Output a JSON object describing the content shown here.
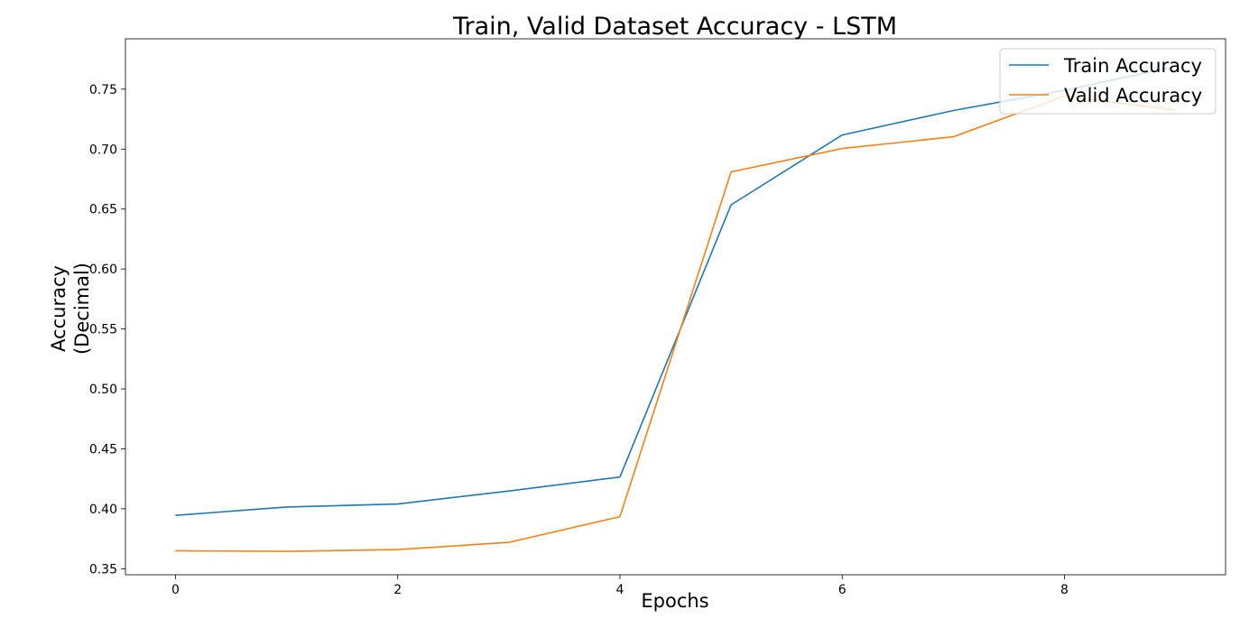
{
  "chart_data": {
    "type": "line",
    "title": "Train, Valid Dataset Accuracy - LSTM",
    "xlabel": "Epochs",
    "ylabel": [
      "Accuracy",
      "(Decimal)"
    ],
    "x": [
      0,
      1,
      2,
      3,
      4,
      5,
      6,
      7,
      8,
      9
    ],
    "xlim": [
      -0.45,
      9.45
    ],
    "ylim": [
      0.345,
      0.792
    ],
    "xticks": [
      0,
      2,
      4,
      6,
      8
    ],
    "yticks": [
      0.35,
      0.4,
      0.45,
      0.5,
      0.55,
      0.6,
      0.65,
      0.7,
      0.75
    ],
    "grid": false,
    "legend_position": "top-right",
    "series": [
      {
        "name": "Train Accuracy",
        "color": "#1f77b4",
        "values": [
          0.3945,
          0.4015,
          0.404,
          0.4148,
          0.4265,
          0.6535,
          0.7118,
          0.7322,
          0.749,
          0.769
        ]
      },
      {
        "name": "Valid Accuracy",
        "color": "#ff7f0e",
        "values": [
          0.365,
          0.3645,
          0.366,
          0.372,
          0.3935,
          0.681,
          0.7005,
          0.7103,
          0.7443,
          0.7325
        ]
      }
    ]
  }
}
